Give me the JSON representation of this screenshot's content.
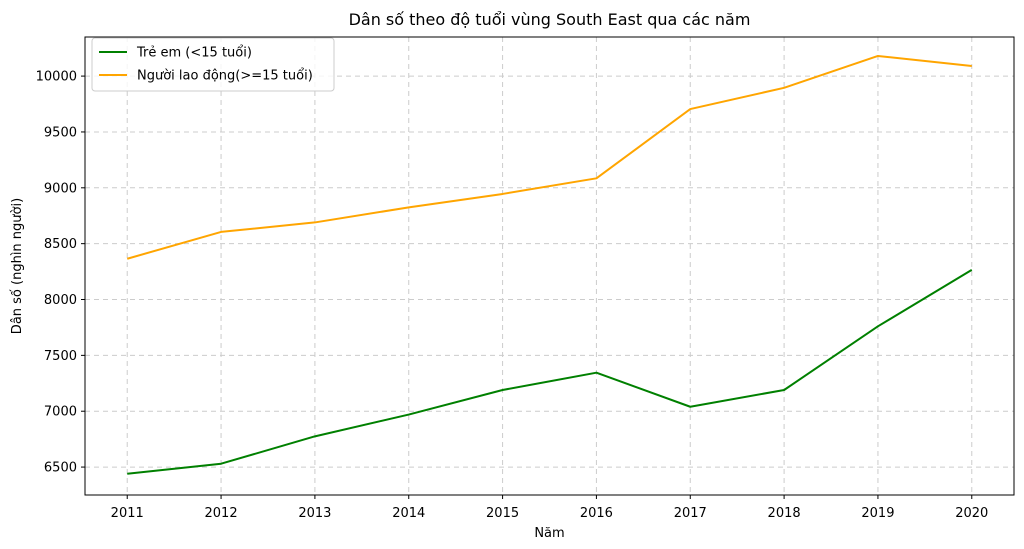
{
  "chart_data": {
    "type": "line",
    "title": "Dân số theo độ tuổi vùng South East qua các năm",
    "xlabel": "Năm",
    "ylabel": "Dân số (nghìn người)",
    "x": [
      2011,
      2012,
      2013,
      2014,
      2015,
      2016,
      2017,
      2018,
      2019,
      2020
    ],
    "xticks": [
      "2011",
      "2012",
      "2013",
      "2014",
      "2015",
      "2016",
      "2017",
      "2018",
      "2019",
      "2020"
    ],
    "yticks": [
      "6500",
      "7000",
      "7500",
      "8000",
      "8500",
      "9000",
      "9500",
      "10000"
    ],
    "ylim": [
      6250,
      10350
    ],
    "grid": true,
    "legend_position": "top-left",
    "series": [
      {
        "name": "Trẻ em (<15 tuổi)",
        "color": "#008000",
        "values": [
          6440,
          6530,
          6775,
          6970,
          7190,
          7345,
          7040,
          7190,
          7760,
          8265
        ]
      },
      {
        "name": "Người lao động(>=15 tuổi)",
        "color": "#FFA500",
        "values": [
          8365,
          8605,
          8690,
          8825,
          8945,
          9085,
          9705,
          9895,
          10180,
          10090
        ]
      }
    ]
  }
}
